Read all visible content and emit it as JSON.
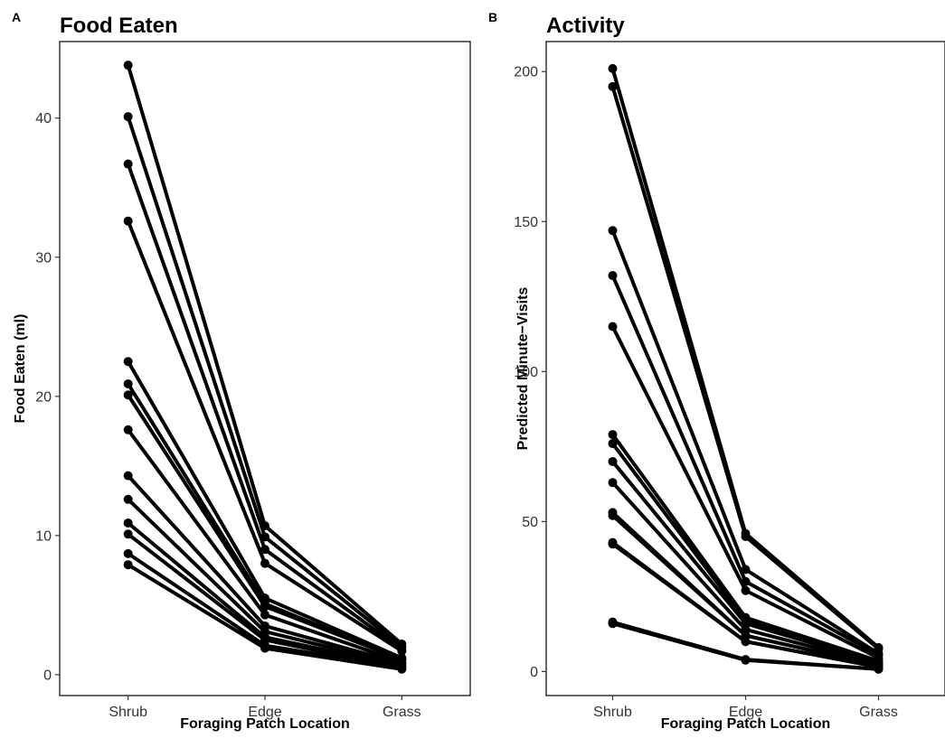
{
  "chart_data": [
    {
      "type": "line",
      "panel_tag": "A",
      "title": "Food Eaten",
      "xlabel": "Foraging Patch Location",
      "ylabel": "Food Eaten (ml)",
      "categories": [
        "Shrub",
        "Edge",
        "Grass"
      ],
      "ylim": [
        -1.5,
        45.5
      ],
      "yticks": [
        0,
        10,
        20,
        30,
        40
      ],
      "grid": false,
      "legend": "none",
      "line_color": "#000000",
      "series": [
        {
          "values": [
            43.8,
            10.7,
            2.2
          ]
        },
        {
          "values": [
            40.1,
            9.9,
            2.0
          ]
        },
        {
          "values": [
            36.7,
            9.0,
            1.8
          ]
        },
        {
          "values": [
            32.6,
            8.0,
            1.7
          ]
        },
        {
          "values": [
            22.5,
            5.5,
            1.2
          ]
        },
        {
          "values": [
            20.9,
            5.1,
            1.1
          ]
        },
        {
          "values": [
            20.1,
            4.9,
            1.1
          ]
        },
        {
          "values": [
            17.6,
            4.3,
            0.9
          ]
        },
        {
          "values": [
            14.3,
            3.5,
            0.8
          ]
        },
        {
          "values": [
            12.6,
            3.1,
            0.7
          ]
        },
        {
          "values": [
            10.9,
            2.7,
            0.6
          ]
        },
        {
          "values": [
            10.1,
            2.5,
            0.5
          ]
        },
        {
          "values": [
            8.7,
            2.1,
            0.5
          ]
        },
        {
          "values": [
            7.9,
            1.9,
            0.4
          ]
        }
      ]
    },
    {
      "type": "line",
      "panel_tag": "B",
      "title": "Activity",
      "xlabel": "Foraging Patch Location",
      "ylabel": "Predicted Minute−Visits",
      "categories": [
        "Shrub",
        "Edge",
        "Grass"
      ],
      "ylim": [
        -8,
        210
      ],
      "yticks": [
        0,
        50,
        100,
        150,
        200
      ],
      "grid": false,
      "legend": "none",
      "line_color": "#000000",
      "series": [
        {
          "values": [
            201,
            46,
            8
          ]
        },
        {
          "values": [
            195,
            45,
            7.5
          ]
        },
        {
          "values": [
            147,
            34,
            6
          ]
        },
        {
          "values": [
            132,
            30,
            5.5
          ]
        },
        {
          "values": [
            115,
            27,
            4.5
          ]
        },
        {
          "values": [
            79,
            18,
            3.5
          ]
        },
        {
          "values": [
            76,
            17,
            3
          ]
        },
        {
          "values": [
            70,
            16,
            3
          ]
        },
        {
          "values": [
            63,
            14,
            2.5
          ]
        },
        {
          "values": [
            53,
            12,
            2
          ]
        },
        {
          "values": [
            52,
            12,
            2
          ]
        },
        {
          "values": [
            43,
            10,
            1.5
          ]
        },
        {
          "values": [
            42.5,
            10,
            1.5
          ]
        },
        {
          "values": [
            16.5,
            4,
            0.8
          ]
        },
        {
          "values": [
            16,
            3.8,
            0.8
          ]
        }
      ]
    }
  ]
}
